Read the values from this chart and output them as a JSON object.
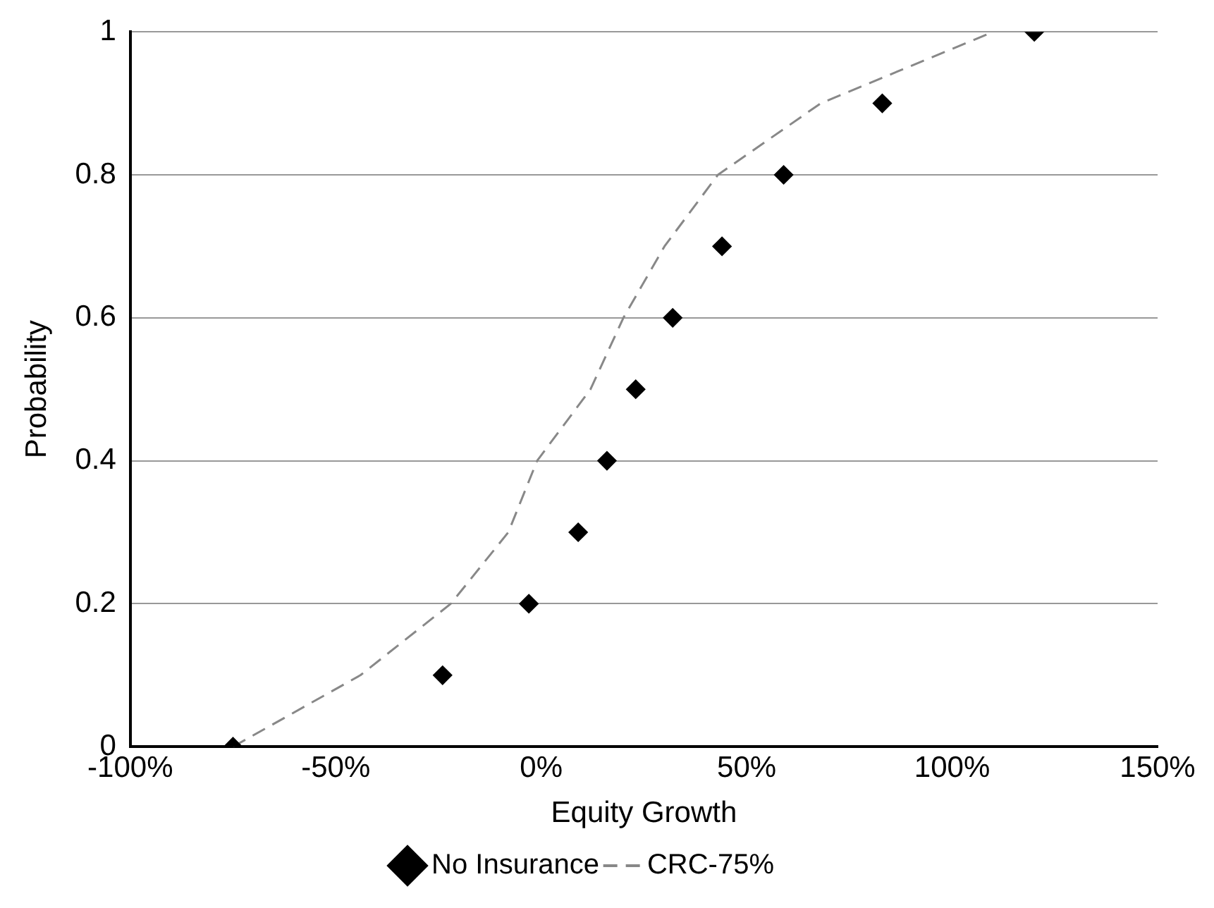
{
  "chart_data": {
    "type": "line",
    "xlabel": "Equity Growth",
    "ylabel": "Probability",
    "xlim": [
      -100,
      150
    ],
    "xticks": [
      {
        "value": -100,
        "label": "-100%"
      },
      {
        "value": -50,
        "label": "-50%"
      },
      {
        "value": 0,
        "label": "0%"
      },
      {
        "value": 50,
        "label": "50%"
      },
      {
        "value": 100,
        "label": "100%"
      },
      {
        "value": 150,
        "label": "150%"
      }
    ],
    "ylim": [
      0,
      1
    ],
    "yticks": [
      0,
      0.2,
      0.4,
      0.6,
      0.8,
      1
    ],
    "grid": "y",
    "legend": "bottom",
    "series": [
      {
        "name": "No Insurance",
        "type": "scatter",
        "color": "#000000",
        "marker": "diamond",
        "x": [
          -75,
          -24,
          -3,
          9,
          16,
          23,
          32,
          44,
          59,
          83,
          120
        ],
        "values": [
          0,
          0.1,
          0.2,
          0.3,
          0.4,
          0.5,
          0.6,
          0.7,
          0.8,
          0.9,
          1
        ]
      },
      {
        "name": "CRC-75%",
        "color": "#888888",
        "marker": "none",
        "line_style": "dashed",
        "x": [
          -75,
          -44,
          -22,
          -8,
          -1,
          12,
          20,
          30,
          43,
          68,
          110
        ],
        "values": [
          0,
          0.1,
          0.2,
          0.3,
          0.4,
          0.5,
          0.6,
          0.7,
          0.8,
          0.9,
          1
        ]
      }
    ]
  }
}
